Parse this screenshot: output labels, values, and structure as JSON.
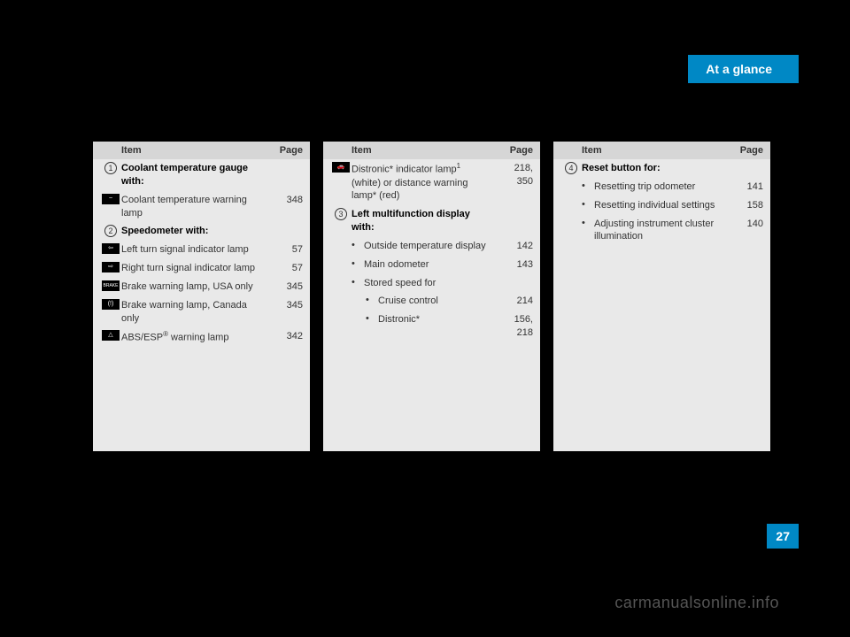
{
  "header": {
    "title": "At a glance"
  },
  "footer": {
    "page": "27",
    "watermark": "carmanualsonline.info"
  },
  "labels": {
    "item": "Item",
    "page": "Page"
  },
  "col1": {
    "r1": {
      "num": "1",
      "text": "Coolant temperature gauge with:"
    },
    "r2": {
      "text": "Coolant temperature warning lamp",
      "page": "348"
    },
    "r3": {
      "num": "2",
      "text": "Speedometer with:"
    },
    "r4": {
      "text": "Left turn signal indicator lamp",
      "page": "57"
    },
    "r5": {
      "text": "Right turn signal indicator lamp",
      "page": "57"
    },
    "r6": {
      "text": "Brake warning lamp, USA only",
      "page": "345",
      "icon": "BRAKE"
    },
    "r7": {
      "text": "Brake warning lamp, Canada only",
      "page": "345"
    },
    "r8_a": "ABS/ESP",
    "r8_b": " warning lamp",
    "r8_page": "342"
  },
  "col2": {
    "r1_a": "Distronic* indicator lamp",
    "r1_b": " (white) or distance warning lamp* (red)",
    "r1_page": "218, 350",
    "r2": {
      "num": "3",
      "text": "Left multifunction display with:"
    },
    "b1": {
      "text": "Outside temperature display",
      "page": "142"
    },
    "b2": {
      "text": "Main odometer",
      "page": "143"
    },
    "b3": {
      "text": "Stored speed for"
    },
    "b4": {
      "text": "Cruise control",
      "page": "214"
    },
    "b5": {
      "text": "Distronic*",
      "page": "156, 218"
    }
  },
  "col3": {
    "r1": {
      "num": "4",
      "text": "Reset button for:"
    },
    "b1": {
      "text": "Resetting trip odometer",
      "page": "141"
    },
    "b2": {
      "text": "Resetting individual settings",
      "page": "158"
    },
    "b3": {
      "text": "Adjusting instrument cluster illumination",
      "page": "140"
    }
  }
}
